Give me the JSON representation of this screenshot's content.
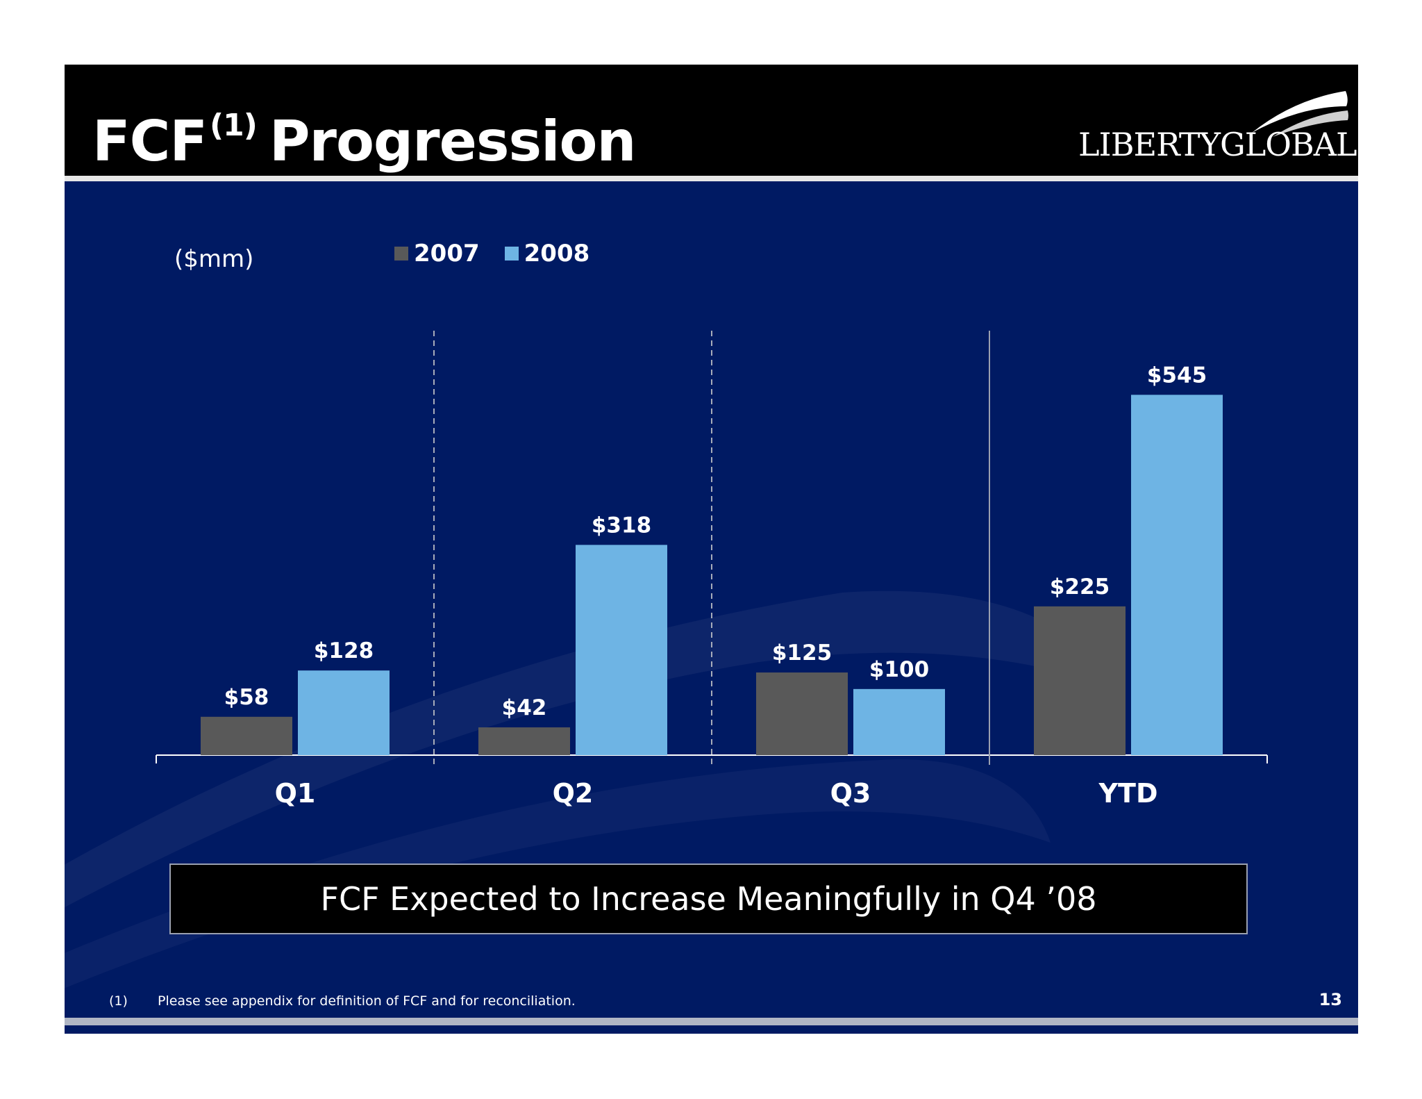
{
  "header": {
    "title": "FCF",
    "title_sup": "(1)",
    "title_rest": "Progression",
    "logo": "LIBERTYGLOBAL"
  },
  "colors": {
    "background": "#001a63",
    "header": "#000000",
    "series_2007": "#595959",
    "series_2008": "#6eb4e4"
  },
  "chart_data": {
    "type": "bar",
    "title": "",
    "unit_label": "($mm)",
    "categories": [
      "Q1",
      "Q2",
      "Q3",
      "YTD"
    ],
    "series": [
      {
        "name": "2007",
        "values": [
          58,
          42,
          125,
          225
        ],
        "labels": [
          "$58",
          "$42",
          "$125",
          "$225"
        ]
      },
      {
        "name": "2008",
        "values": [
          128,
          318,
          100,
          545
        ],
        "labels": [
          "$128",
          "$318",
          "$100",
          "$545"
        ]
      }
    ],
    "ylim": [
      0,
      600
    ],
    "legend_position": "top-left",
    "grid": false
  },
  "callout": {
    "text": "FCF Expected to Increase Meaningfully in Q4 ’08"
  },
  "footnote": {
    "number": "(1)",
    "text": "Please see appendix for definition of FCF and for reconciliation."
  },
  "page_number": "13"
}
